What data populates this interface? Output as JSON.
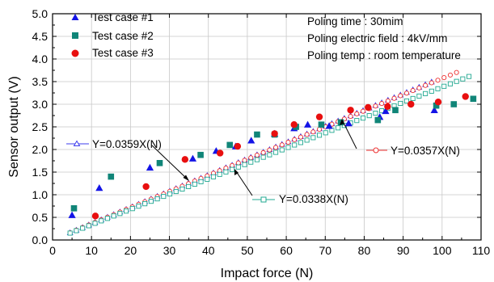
{
  "chart_data": {
    "type": "scatter",
    "xlabel": "Impact force (N)",
    "ylabel": "Sensor output (V)",
    "xlim": [
      0,
      110
    ],
    "ylim": [
      0.0,
      5.0
    ],
    "x_ticks": [
      "0",
      "10",
      "20",
      "30",
      "40",
      "50",
      "60",
      "70",
      "80",
      "90",
      "100",
      "110"
    ],
    "y_ticks": [
      "0.0",
      "0.5",
      "1.0",
      "1.5",
      "2.0",
      "2.5",
      "3.0",
      "3.5",
      "4.0",
      "4.5",
      "5.0"
    ],
    "grid": true,
    "legend_position": "top-left",
    "annotations": [
      "Poling time : 30mim",
      "Poling electric field : 4kV/mm",
      "Poling temp : room temperature"
    ],
    "series": [
      {
        "name": "Test case #1",
        "marker": "filled-triangle",
        "color": "#1414e6",
        "points": [
          [
            5,
            0.55
          ],
          [
            12,
            1.15
          ],
          [
            25,
            1.6
          ],
          [
            36,
            1.8
          ],
          [
            42,
            1.97
          ],
          [
            47,
            2.07
          ],
          [
            51,
            2.2
          ],
          [
            57,
            2.35
          ],
          [
            62,
            2.47
          ],
          [
            65.5,
            2.55
          ],
          [
            71,
            2.52
          ],
          [
            76,
            2.58
          ],
          [
            84,
            2.72
          ],
          [
            85.5,
            2.85
          ],
          [
            98,
            2.87
          ]
        ]
      },
      {
        "name": "Test case #2",
        "marker": "filled-square",
        "color": "#108578",
        "points": [
          [
            5.5,
            0.7
          ],
          [
            15,
            1.4
          ],
          [
            27.5,
            1.7
          ],
          [
            38,
            1.88
          ],
          [
            45.5,
            2.1
          ],
          [
            52.5,
            2.33
          ],
          [
            57,
            2.33
          ],
          [
            62.5,
            2.5
          ],
          [
            69,
            2.55
          ],
          [
            74,
            2.6
          ],
          [
            83.5,
            2.65
          ],
          [
            88,
            2.87
          ],
          [
            98.5,
            2.97
          ],
          [
            103,
            3.0
          ],
          [
            108,
            3.12
          ]
        ]
      },
      {
        "name": "Test case #3",
        "marker": "filled-circle",
        "color": "#e80f0f",
        "points": [
          [
            11,
            0.53
          ],
          [
            24,
            1.18
          ],
          [
            34,
            1.78
          ],
          [
            43,
            1.92
          ],
          [
            47.5,
            2.07
          ],
          [
            57,
            2.35
          ],
          [
            62,
            2.55
          ],
          [
            68.5,
            2.72
          ],
          [
            76.5,
            2.87
          ],
          [
            81,
            2.93
          ],
          [
            86,
            2.95
          ],
          [
            92,
            3.0
          ],
          [
            99,
            3.05
          ],
          [
            106,
            3.17
          ]
        ]
      },
      {
        "name": "Y=0.0359X(N)",
        "marker": "open-triangle",
        "color": "#3c3cee",
        "x_range": [
          4.5,
          98
        ]
      },
      {
        "name": "Y=0.0357X(N)",
        "marker": "open-circle",
        "color": "#ee3030",
        "x_range": [
          4.5,
          105
        ]
      },
      {
        "name": "Y=0.0338X(N)",
        "marker": "open-square",
        "color": "#20a890",
        "x_range": [
          4.5,
          108
        ]
      }
    ],
    "fit_labels": [
      "Y=0.0359X(N)",
      "Y=0.0357X(N)",
      "Y=0.0338X(N)"
    ]
  }
}
